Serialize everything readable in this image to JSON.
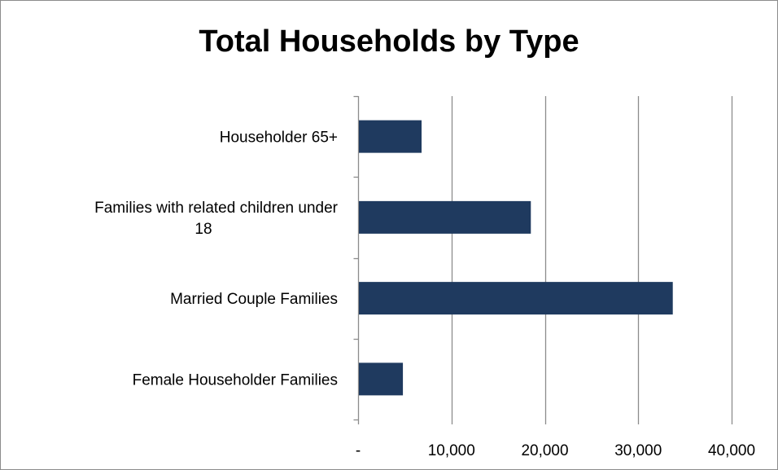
{
  "chart_data": {
    "type": "bar",
    "orientation": "horizontal",
    "title": "Total Households by Type",
    "categories": [
      "Householder 65+",
      "Families with related children under 18",
      "Married Couple Families",
      "Female Householder Families"
    ],
    "category_label_lines": [
      [
        "Householder 65+"
      ],
      [
        "Families with related children under",
        "18"
      ],
      [
        "Married Couple Families"
      ],
      [
        "Female Householder Families"
      ]
    ],
    "values": [
      6800,
      18500,
      33700,
      4800
    ],
    "xlim": [
      0,
      40000
    ],
    "xticks": [
      0,
      10000,
      20000,
      30000,
      40000
    ],
    "xtick_labels": [
      "-",
      "10,000",
      "20,000",
      "30,000",
      "40,000"
    ],
    "xlabel": "",
    "ylabel": "",
    "grid": true,
    "legend": "none",
    "colors": {
      "bar": "#1f3a5f",
      "grid": "#8c8c8c",
      "axis": "#8c8c8c"
    }
  }
}
